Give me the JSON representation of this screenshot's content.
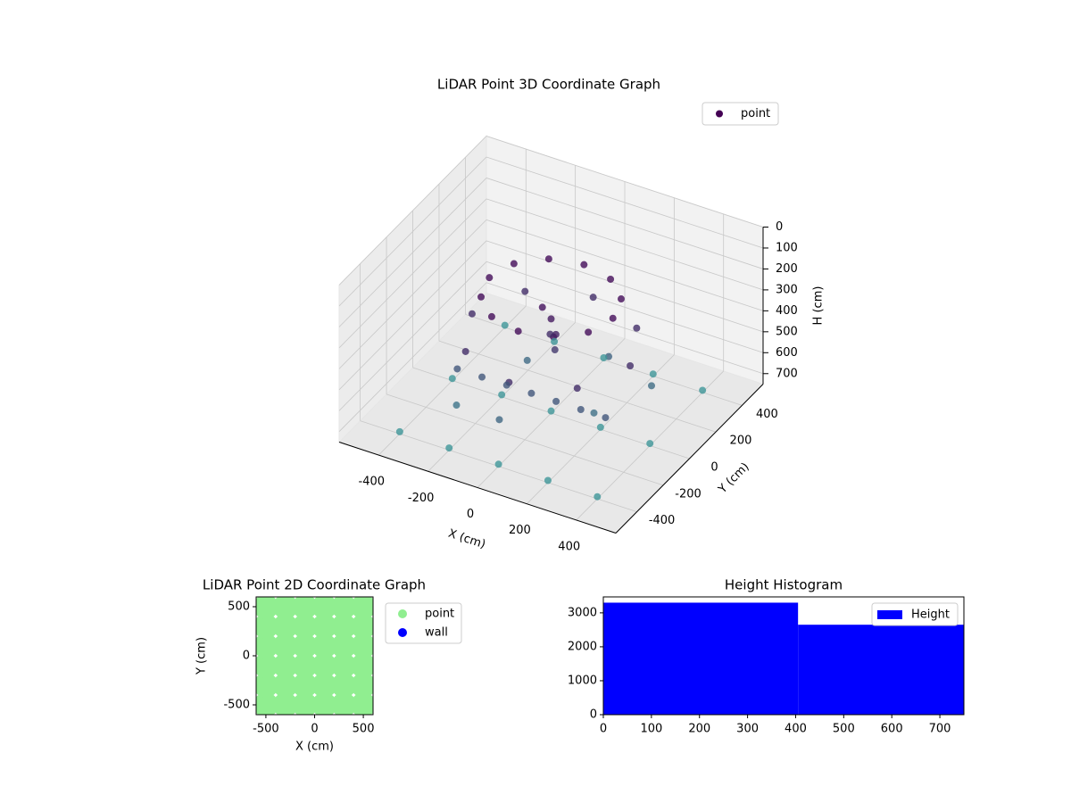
{
  "chart_data": [
    {
      "type": "scatter3d",
      "title": "LiDAR Point 3D Coordinate Graph",
      "xlabel": "X (cm)",
      "ylabel": "Y (cm)",
      "zlabel": "H (cm)",
      "xlim": [
        -560,
        560
      ],
      "ylim": [
        -560,
        560
      ],
      "zlim": [
        0,
        750
      ],
      "z_inverted": true,
      "xticks": [
        -400,
        -200,
        0,
        200,
        400
      ],
      "yticks": [
        -400,
        -200,
        0,
        200,
        400
      ],
      "zticks": [
        0,
        100,
        200,
        300,
        400,
        500,
        600,
        700
      ],
      "grid": true,
      "legend": "upper right",
      "series": [
        {
          "name": "point",
          "color": "#440154",
          "depth_color": "#3e9a9a",
          "x": [
            250,
            217,
            125,
            0,
            -125,
            -217,
            -250,
            -217,
            -125,
            0,
            125,
            217,
            320,
            226,
            0,
            -226,
            -320,
            -226,
            0,
            226,
            -300,
            -200,
            -100,
            0,
            100,
            200,
            300,
            0,
            30,
            -20,
            10,
            -30,
            -150,
            200,
            100,
            -250,
            300,
            -50,
            -400,
            -400,
            -400,
            -200,
            -200,
            -200,
            0,
            0,
            0,
            200,
            200,
            200,
            400,
            400,
            400
          ],
          "y": [
            0,
            125,
            217,
            250,
            217,
            125,
            0,
            -125,
            -217,
            -250,
            -217,
            -125,
            0,
            226,
            320,
            226,
            0,
            -226,
            -320,
            -226,
            -150,
            -150,
            -150,
            -150,
            -150,
            -150,
            -150,
            0,
            -20,
            30,
            10,
            -10,
            100,
            -50,
            250,
            -250,
            200,
            -300,
            -400,
            0,
            400,
            -400,
            0,
            400,
            -400,
            0,
            400,
            -400,
            0,
            400,
            -400,
            0,
            400
          ],
          "z": [
            200,
            200,
            200,
            200,
            200,
            200,
            200,
            200,
            200,
            200,
            200,
            200,
            400,
            400,
            400,
            400,
            400,
            400,
            400,
            400,
            560,
            560,
            560,
            560,
            560,
            560,
            560,
            300,
            350,
            400,
            450,
            250,
            620,
            640,
            600,
            650,
            630,
            610,
            740,
            740,
            740,
            740,
            740,
            740,
            740,
            740,
            740,
            740,
            740,
            740,
            740,
            740,
            740
          ]
        }
      ]
    },
    {
      "type": "scatter",
      "title": "LiDAR Point 2D Coordinate Graph",
      "xlabel": "X (cm)",
      "ylabel": "Y (cm)",
      "xlim": [
        -600,
        600
      ],
      "ylim": [
        -600,
        600
      ],
      "xticks": [
        -500,
        0,
        500
      ],
      "yticks": [
        -500,
        0,
        500
      ],
      "legend": "outside right",
      "series": [
        {
          "name": "point",
          "color": "#90ee90",
          "x": [
            -500,
            -300,
            -100,
            100,
            300,
            500,
            -500,
            -300,
            -100,
            100,
            300,
            500,
            -500,
            -300,
            -100,
            100,
            300,
            500,
            -500,
            -300,
            -100,
            100,
            300,
            500,
            -500,
            -300,
            -100,
            100,
            300,
            500,
            -500,
            -300,
            -100,
            100,
            300,
            500
          ],
          "y": [
            -500,
            -500,
            -500,
            -500,
            -500,
            -500,
            -300,
            -300,
            -300,
            -300,
            -300,
            -300,
            -100,
            -100,
            -100,
            -100,
            -100,
            -100,
            100,
            100,
            100,
            100,
            100,
            100,
            300,
            300,
            300,
            300,
            300,
            300,
            500,
            500,
            500,
            500,
            500,
            500
          ]
        },
        {
          "name": "wall",
          "color": "#0000ff",
          "x": [],
          "y": []
        }
      ]
    },
    {
      "type": "histogram",
      "title": "Height Histogram",
      "name": "Height",
      "color": "#0000ff",
      "bins": [
        0,
        405,
        750
      ],
      "values": [
        3300,
        2650
      ],
      "xlim": [
        0,
        750
      ],
      "ylim": [
        0,
        3470
      ],
      "xticks": [
        0,
        100,
        200,
        300,
        400,
        500,
        600,
        700
      ],
      "yticks": [
        0,
        1000,
        2000,
        3000
      ],
      "legend": "upper right"
    }
  ]
}
